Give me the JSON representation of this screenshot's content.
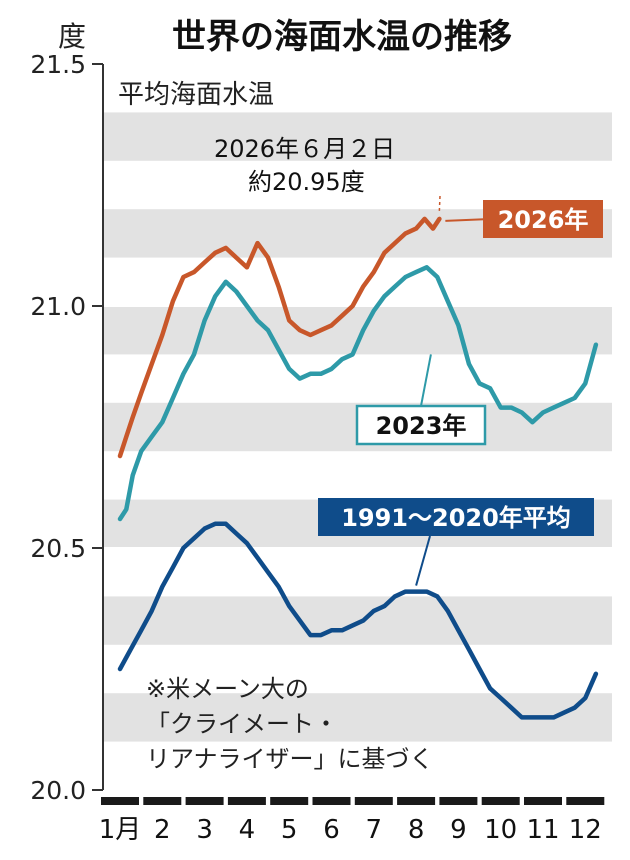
{
  "chart_data": {
    "type": "line",
    "title": "世界の海面水温の推移",
    "subtitle": "平均海面水温",
    "y_unit": "度",
    "ylim": [
      20.0,
      21.5
    ],
    "yticks": [
      "20.0",
      "20.5",
      "21.0",
      "21.5"
    ],
    "categories": [
      "1月",
      "2",
      "3",
      "4",
      "5",
      "6",
      "7",
      "8",
      "9",
      "10",
      "11",
      "12"
    ],
    "series": [
      {
        "name": "2026年",
        "color": "#c8572a",
        "x": [
          1.0,
          1.15,
          1.3,
          1.5,
          1.75,
          2.0,
          2.25,
          2.5,
          2.75,
          3.0,
          3.25,
          3.5,
          3.75,
          4.0,
          4.25,
          4.5,
          4.75,
          5.0,
          5.25,
          5.5,
          5.75,
          6.0,
          6.25,
          6.5,
          6.75,
          7.0,
          7.25,
          7.5,
          7.75,
          8.0,
          8.2,
          8.4,
          8.55
        ],
        "values": [
          20.69,
          20.73,
          20.77,
          20.82,
          20.88,
          20.94,
          21.01,
          21.06,
          21.07,
          21.09,
          21.11,
          21.12,
          21.1,
          21.08,
          21.13,
          21.1,
          21.04,
          20.97,
          20.95,
          20.94,
          20.95,
          20.96,
          20.98,
          21.0,
          21.04,
          21.07,
          21.11,
          21.13,
          21.15,
          21.16,
          21.18,
          21.16,
          21.18
        ]
      },
      {
        "name": "2023年",
        "color": "#2e9aa8",
        "x": [
          1.0,
          1.15,
          1.3,
          1.5,
          1.75,
          2.0,
          2.25,
          2.5,
          2.75,
          3.0,
          3.25,
          3.5,
          3.75,
          4.0,
          4.25,
          4.5,
          4.75,
          5.0,
          5.25,
          5.5,
          5.75,
          6.0,
          6.25,
          6.5,
          6.75,
          7.0,
          7.25,
          7.5,
          7.75,
          8.0,
          8.25,
          8.5,
          8.75,
          9.0,
          9.25,
          9.5,
          9.75,
          10.0,
          10.25,
          10.5,
          10.75,
          11.0,
          11.25,
          11.5,
          11.75,
          12.0,
          12.25
        ],
        "values": [
          20.56,
          20.58,
          20.65,
          20.7,
          20.73,
          20.76,
          20.81,
          20.86,
          20.9,
          20.97,
          21.02,
          21.05,
          21.03,
          21.0,
          20.97,
          20.95,
          20.91,
          20.87,
          20.85,
          20.86,
          20.86,
          20.87,
          20.89,
          20.9,
          20.95,
          20.99,
          21.02,
          21.04,
          21.06,
          21.07,
          21.08,
          21.06,
          21.01,
          20.96,
          20.88,
          20.84,
          20.83,
          20.79,
          20.79,
          20.78,
          20.76,
          20.78,
          20.79,
          20.8,
          20.81,
          20.84,
          20.92
        ]
      },
      {
        "name": "1991～2020年平均",
        "color": "#0f4c8a",
        "x": [
          1.0,
          1.25,
          1.5,
          1.75,
          2.0,
          2.25,
          2.5,
          2.75,
          3.0,
          3.25,
          3.5,
          3.75,
          4.0,
          4.25,
          4.5,
          4.75,
          5.0,
          5.25,
          5.5,
          5.75,
          6.0,
          6.25,
          6.5,
          6.75,
          7.0,
          7.25,
          7.5,
          7.75,
          8.0,
          8.25,
          8.5,
          8.75,
          9.0,
          9.25,
          9.5,
          9.75,
          10.0,
          10.25,
          10.5,
          10.75,
          11.0,
          11.25,
          11.5,
          11.75,
          12.0,
          12.25
        ],
        "values": [
          20.25,
          20.29,
          20.33,
          20.37,
          20.42,
          20.46,
          20.5,
          20.52,
          20.54,
          20.55,
          20.55,
          20.53,
          20.51,
          20.48,
          20.45,
          20.42,
          20.38,
          20.35,
          20.32,
          20.32,
          20.33,
          20.33,
          20.34,
          20.35,
          20.37,
          20.38,
          20.4,
          20.41,
          20.41,
          20.41,
          20.4,
          20.37,
          20.33,
          20.29,
          20.25,
          20.21,
          20.19,
          20.17,
          20.15,
          20.15,
          20.15,
          20.15,
          20.16,
          20.17,
          20.19,
          20.24
        ]
      }
    ],
    "point_annotation": {
      "text_line1": "2026年６月２日",
      "text_line2": "約20.95度"
    },
    "note_lines": [
      "※米メーン大の",
      "「クライメート・",
      "リアナライザー」に基づく"
    ],
    "grid_bands": true
  }
}
